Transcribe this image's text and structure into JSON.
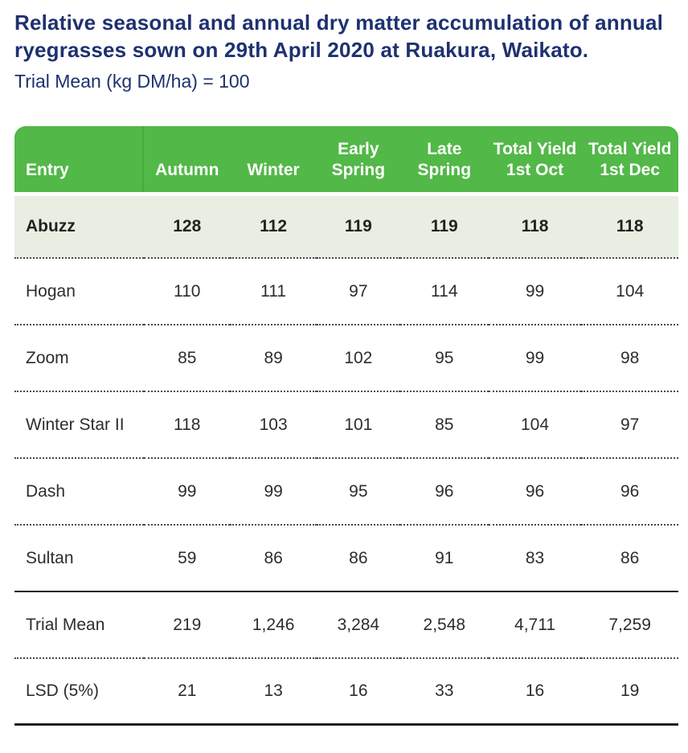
{
  "header": {
    "title": "Relative seasonal and annual dry matter accumulation of annual ryegrasses sown on 29th April 2020 at Ruakura, Waikato.",
    "subtitle": "Trial Mean (kg DM/ha) = 100"
  },
  "colors": {
    "header_green": "#52b848",
    "header_divider_green": "#47aa3d",
    "highlight_row_green": "#e8efe2",
    "title_blue": "#1e3170",
    "body_text": "#2d2d2d",
    "rule_dark": "#1f1f1f"
  },
  "chart_data": {
    "type": "table",
    "title": "Relative seasonal and annual dry matter accumulation of annual ryegrasses sown on 29th April 2020 at Ruakura, Waikato.",
    "subtitle": "Trial Mean (kg DM/ha) = 100",
    "columns": [
      "Entry",
      "Autumn",
      "Winter",
      "Early Spring",
      "Late Spring",
      "Total Yield 1st Oct",
      "Total Yield 1st Dec"
    ],
    "rows": [
      {
        "entry": "Abuzz",
        "values": [
          "128",
          "112",
          "119",
          "119",
          "118",
          "118"
        ],
        "highlighted": true,
        "bold": true,
        "divider_below": "dotted"
      },
      {
        "entry": "Hogan",
        "values": [
          "110",
          "111",
          "97",
          "114",
          "99",
          "104"
        ],
        "highlighted": false,
        "bold": false,
        "divider_below": "dotted"
      },
      {
        "entry": "Zoom",
        "values": [
          "85",
          "89",
          "102",
          "95",
          "99",
          "98"
        ],
        "highlighted": false,
        "bold": false,
        "divider_below": "dotted"
      },
      {
        "entry": "Winter Star II",
        "values": [
          "118",
          "103",
          "101",
          "85",
          "104",
          "97"
        ],
        "highlighted": false,
        "bold": false,
        "divider_below": "dotted"
      },
      {
        "entry": "Dash",
        "values": [
          "99",
          "99",
          "95",
          "96",
          "96",
          "96"
        ],
        "highlighted": false,
        "bold": false,
        "divider_below": "dotted"
      },
      {
        "entry": "Sultan",
        "values": [
          "59",
          "86",
          "86",
          "91",
          "83",
          "86"
        ],
        "highlighted": false,
        "bold": false,
        "divider_below": "solid"
      },
      {
        "entry": "Trial Mean",
        "values": [
          "219",
          "1,246",
          "3,284",
          "2,548",
          "4,711",
          "7,259"
        ],
        "highlighted": false,
        "bold": false,
        "divider_below": "dotted"
      },
      {
        "entry": "LSD (5%)",
        "values": [
          "21",
          "13",
          "16",
          "33",
          "16",
          "19"
        ],
        "highlighted": false,
        "bold": false,
        "divider_below": "solid-thick"
      }
    ]
  }
}
